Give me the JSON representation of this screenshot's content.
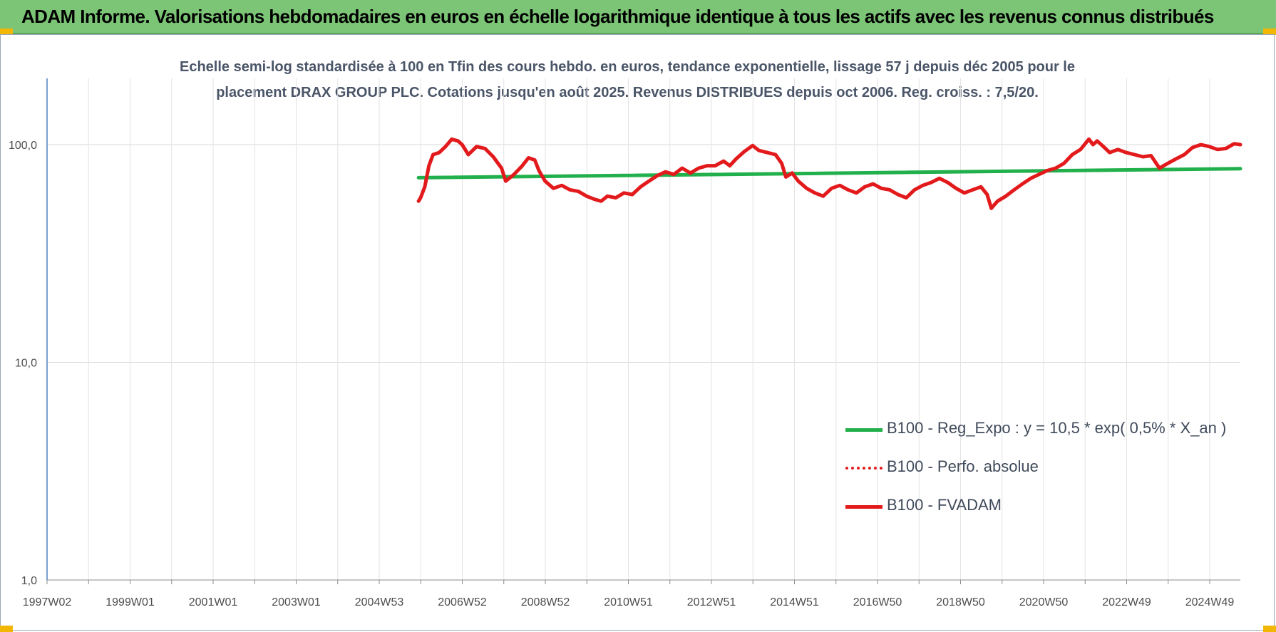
{
  "header": {
    "title": "ADAM Informe. Valorisations hebdomadaires en euros en échelle logarithmique identique à tous les actifs avec les revenus connus distribués"
  },
  "chart_data": {
    "type": "line",
    "title_line1": "Echelle semi-log standardisée à 100 en Tfin des cours hebdo. en euros, tendance exponentielle, lissage 57 j depuis déc 2005 pour le",
    "title_line2": "placement DRAX GROUP PLC. Cotations jusqu'en août 2025. Revenus DISTRIBUES depuis oct 2006. Reg. croiss. : 7,5/20.",
    "y_scale": "log",
    "ylim": [
      1,
      200
    ],
    "y_ticks": [
      {
        "value": 1,
        "label": "1,0"
      },
      {
        "value": 10,
        "label": "10,0"
      },
      {
        "value": 100,
        "label": "100,0"
      }
    ],
    "x_tick_labels": [
      "1997W02",
      "1999W01",
      "2001W01",
      "2003W01",
      "2004W53",
      "2006W52",
      "2008W52",
      "2010W51",
      "2012W51",
      "2014W51",
      "2016W50",
      "2018W50",
      "2020W50",
      "2022W49",
      "2024W49"
    ],
    "xlim": [
      1997.0,
      2025.75
    ],
    "grid": true,
    "legend_position": "bottom-right",
    "series": [
      {
        "name": "B100 - Reg_Expo : y = 10,5 * exp( 0,5% *  X_an )",
        "color": "#22b04c",
        "style": "solid",
        "points": [
          [
            2005.95,
            70.5
          ],
          [
            2025.75,
            77.5
          ]
        ]
      },
      {
        "name": "B100 - Perfo. absolue",
        "color": "#e31a1c",
        "style": "dotted",
        "points": []
      },
      {
        "name": "B100 - FVADAM",
        "color": "#e31a1c",
        "style": "solid",
        "points": [
          [
            2005.95,
            55
          ],
          [
            2006.0,
            57
          ],
          [
            2006.1,
            64
          ],
          [
            2006.2,
            80
          ],
          [
            2006.3,
            90
          ],
          [
            2006.45,
            92
          ],
          [
            2006.6,
            98
          ],
          [
            2006.75,
            106
          ],
          [
            2006.9,
            104
          ],
          [
            2007.0,
            100
          ],
          [
            2007.15,
            90
          ],
          [
            2007.35,
            98
          ],
          [
            2007.55,
            96
          ],
          [
            2007.75,
            88
          ],
          [
            2007.95,
            78
          ],
          [
            2008.05,
            68
          ],
          [
            2008.25,
            73
          ],
          [
            2008.45,
            80
          ],
          [
            2008.6,
            87
          ],
          [
            2008.75,
            85
          ],
          [
            2008.85,
            76
          ],
          [
            2009.0,
            68
          ],
          [
            2009.2,
            63
          ],
          [
            2009.4,
            65
          ],
          [
            2009.6,
            62
          ],
          [
            2009.8,
            61
          ],
          [
            2010.0,
            58
          ],
          [
            2010.2,
            56
          ],
          [
            2010.35,
            55
          ],
          [
            2010.5,
            58
          ],
          [
            2010.7,
            57
          ],
          [
            2010.9,
            60
          ],
          [
            2011.1,
            59
          ],
          [
            2011.3,
            64
          ],
          [
            2011.5,
            68
          ],
          [
            2011.7,
            72
          ],
          [
            2011.9,
            75
          ],
          [
            2012.1,
            73
          ],
          [
            2012.3,
            78
          ],
          [
            2012.5,
            74
          ],
          [
            2012.7,
            78
          ],
          [
            2012.9,
            80
          ],
          [
            2013.1,
            80
          ],
          [
            2013.3,
            84
          ],
          [
            2013.45,
            80
          ],
          [
            2013.6,
            86
          ],
          [
            2013.8,
            93
          ],
          [
            2014.0,
            99
          ],
          [
            2014.15,
            94
          ],
          [
            2014.35,
            92
          ],
          [
            2014.55,
            90
          ],
          [
            2014.7,
            82
          ],
          [
            2014.8,
            71
          ],
          [
            2014.95,
            74
          ],
          [
            2015.1,
            68
          ],
          [
            2015.3,
            63
          ],
          [
            2015.5,
            60
          ],
          [
            2015.7,
            58
          ],
          [
            2015.9,
            63
          ],
          [
            2016.1,
            65
          ],
          [
            2016.3,
            62
          ],
          [
            2016.5,
            60
          ],
          [
            2016.7,
            64
          ],
          [
            2016.9,
            66
          ],
          [
            2017.1,
            63
          ],
          [
            2017.3,
            62
          ],
          [
            2017.5,
            59
          ],
          [
            2017.7,
            57
          ],
          [
            2017.9,
            62
          ],
          [
            2018.1,
            65
          ],
          [
            2018.3,
            67
          ],
          [
            2018.5,
            70
          ],
          [
            2018.7,
            67
          ],
          [
            2018.9,
            63
          ],
          [
            2019.1,
            60
          ],
          [
            2019.3,
            62
          ],
          [
            2019.5,
            64
          ],
          [
            2019.65,
            59
          ],
          [
            2019.75,
            51
          ],
          [
            2019.9,
            55
          ],
          [
            2020.1,
            58
          ],
          [
            2020.3,
            62
          ],
          [
            2020.5,
            66
          ],
          [
            2020.7,
            70
          ],
          [
            2020.9,
            73
          ],
          [
            2021.1,
            76
          ],
          [
            2021.3,
            78
          ],
          [
            2021.5,
            82
          ],
          [
            2021.7,
            90
          ],
          [
            2021.9,
            95
          ],
          [
            2022.1,
            106
          ],
          [
            2022.2,
            100
          ],
          [
            2022.3,
            104
          ],
          [
            2022.45,
            98
          ],
          [
            2022.6,
            92
          ],
          [
            2022.8,
            95
          ],
          [
            2023.0,
            92
          ],
          [
            2023.2,
            90
          ],
          [
            2023.4,
            88
          ],
          [
            2023.6,
            89
          ],
          [
            2023.8,
            78
          ],
          [
            2024.0,
            82
          ],
          [
            2024.2,
            86
          ],
          [
            2024.4,
            90
          ],
          [
            2024.6,
            97
          ],
          [
            2024.8,
            100
          ],
          [
            2025.0,
            98
          ],
          [
            2025.2,
            95
          ],
          [
            2025.4,
            96
          ],
          [
            2025.6,
            101
          ],
          [
            2025.75,
            100
          ]
        ]
      }
    ]
  }
}
